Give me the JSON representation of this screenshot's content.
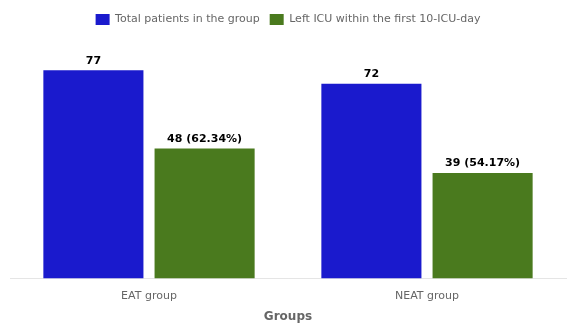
{
  "chart_data": {
    "type": "bar",
    "categories": [
      "EAT group",
      "NEAT group"
    ],
    "series": [
      {
        "name": "Total patients in the group",
        "color": "#1a1acd",
        "values": [
          77,
          72
        ]
      },
      {
        "name": "Left ICU within the first 10-ICU-day",
        "color": "#4a7a1e",
        "values": [
          48,
          39
        ],
        "value_labels": [
          "48 (62.34%)",
          "39 (54.17%)"
        ]
      }
    ],
    "xlabel": "Groups",
    "ylim": [
      0,
      90
    ],
    "data_labels": true,
    "tick_labels": "x",
    "grid": false,
    "legend": "top"
  }
}
